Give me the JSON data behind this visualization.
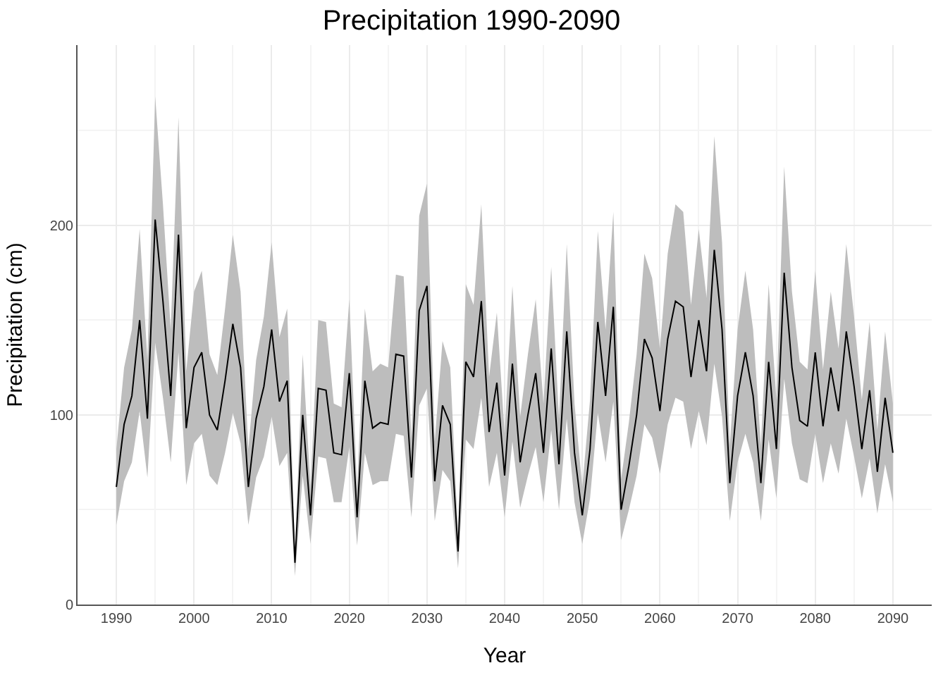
{
  "chart_data": {
    "type": "line",
    "title": "Precipitation 1990-2090",
    "xlabel": "Year",
    "ylabel": "Precipitation (cm)",
    "x": [
      1990,
      1991,
      1992,
      1993,
      1994,
      1995,
      1996,
      1997,
      1998,
      1999,
      2000,
      2001,
      2002,
      2003,
      2004,
      2005,
      2006,
      2007,
      2008,
      2009,
      2010,
      2011,
      2012,
      2013,
      2014,
      2015,
      2016,
      2017,
      2018,
      2019,
      2020,
      2021,
      2022,
      2023,
      2024,
      2025,
      2026,
      2027,
      2028,
      2029,
      2030,
      2031,
      2032,
      2033,
      2034,
      2035,
      2036,
      2037,
      2038,
      2039,
      2040,
      2041,
      2042,
      2043,
      2044,
      2045,
      2046,
      2047,
      2048,
      2049,
      2050,
      2051,
      2052,
      2053,
      2054,
      2055,
      2056,
      2057,
      2058,
      2059,
      2060,
      2061,
      2062,
      2063,
      2064,
      2065,
      2066,
      2067,
      2068,
      2069,
      2070,
      2071,
      2072,
      2073,
      2074,
      2075,
      2076,
      2077,
      2078,
      2079,
      2080,
      2081,
      2082,
      2083,
      2084,
      2085,
      2086,
      2087,
      2088,
      2089,
      2090
    ],
    "series": [
      {
        "color": "#000000",
        "values": [
          62,
          95,
          110,
          150,
          98,
          203,
          160,
          110,
          195,
          93,
          125,
          133,
          100,
          92,
          118,
          148,
          125,
          62,
          98,
          115,
          145,
          107,
          118,
          22,
          100,
          47,
          114,
          113,
          80,
          79,
          122,
          46,
          118,
          93,
          96,
          95,
          132,
          131,
          67,
          155,
          168,
          65,
          105,
          95,
          28,
          128,
          120,
          160,
          91,
          117,
          68,
          127,
          75,
          100,
          122,
          80,
          135,
          74,
          144,
          80,
          47,
          82,
          149,
          110,
          157,
          50,
          73,
          100,
          140,
          130,
          102,
          140,
          160,
          157,
          120,
          150,
          123,
          187,
          145,
          64,
          110,
          133,
          110,
          64,
          128,
          82,
          175,
          125,
          97,
          94,
          133,
          94,
          125,
          102,
          144,
          115,
          82,
          113,
          70,
          109,
          80
        ],
        "lower": [
          42,
          65,
          75,
          102,
          67,
          138,
          109,
          75,
          133,
          63,
          85,
          90,
          68,
          63,
          80,
          101,
          85,
          42,
          67,
          78,
          99,
          73,
          80,
          15,
          68,
          32,
          78,
          77,
          54,
          54,
          83,
          31,
          80,
          63,
          65,
          65,
          90,
          89,
          46,
          105,
          114,
          44,
          71,
          65,
          19,
          87,
          82,
          109,
          62,
          80,
          46,
          86,
          51,
          68,
          83,
          54,
          92,
          50,
          98,
          54,
          32,
          56,
          101,
          75,
          107,
          34,
          50,
          68,
          95,
          88,
          69,
          95,
          109,
          107,
          82,
          102,
          84,
          127,
          99,
          44,
          75,
          90,
          75,
          44,
          87,
          56,
          119,
          85,
          66,
          64,
          90,
          64,
          85,
          69,
          98,
          78,
          56,
          77,
          48,
          74,
          54
        ],
        "upper": [
          82,
          125,
          145,
          198,
          129,
          268,
          211,
          145,
          257,
          123,
          165,
          176,
          132,
          121,
          156,
          195,
          165,
          82,
          129,
          152,
          191,
          141,
          156,
          29,
          132,
          62,
          150,
          149,
          106,
          104,
          161,
          61,
          156,
          123,
          127,
          125,
          174,
          173,
          88,
          205,
          222,
          86,
          139,
          125,
          37,
          169,
          158,
          211,
          120,
          154,
          90,
          168,
          99,
          132,
          161,
          106,
          178,
          98,
          190,
          106,
          62,
          108,
          197,
          145,
          207,
          66,
          96,
          132,
          185,
          172,
          135,
          185,
          211,
          207,
          158,
          198,
          162,
          247,
          191,
          84,
          145,
          176,
          145,
          84,
          169,
          108,
          231,
          165,
          128,
          124,
          176,
          124,
          165,
          135,
          190,
          152,
          108,
          149,
          92,
          144,
          106
        ]
      }
    ],
    "xlim": [
      1985,
      2095
    ],
    "xticks": [
      1990,
      2000,
      2010,
      2020,
      2030,
      2040,
      2050,
      2060,
      2070,
      2080,
      2090
    ],
    "ylim": [
      0,
      295
    ],
    "yticks": [
      0,
      100,
      200
    ],
    "grid": true,
    "line_style": "solid",
    "marker": "none"
  }
}
